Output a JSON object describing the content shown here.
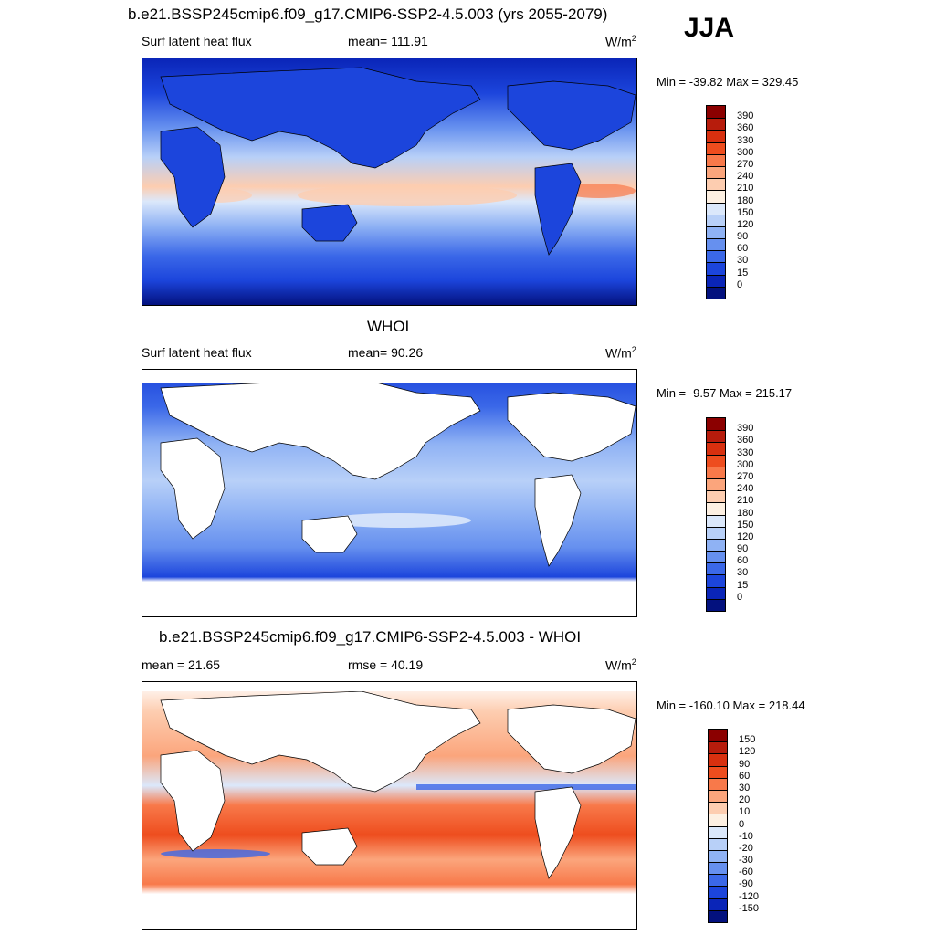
{
  "season": "JJA",
  "panels": [
    {
      "title": "b.e21.BSSP245cmip6.f09_g17.CMIP6-SSP2-4.5.003 (yrs 2055-2079)",
      "left_label": "Surf latent heat flux",
      "center_label": "mean= 111.91",
      "units": "W/m",
      "units_sup": "2",
      "minmax": "Min = -39.82 Max = 329.45",
      "land_filled": true,
      "colorbar": {
        "labels": [
          "390",
          "360",
          "330",
          "300",
          "270",
          "240",
          "210",
          "180",
          "150",
          "120",
          "90",
          "60",
          "30",
          "15",
          "0"
        ],
        "colors": [
          "#8b0000",
          "#b71c0c",
          "#d8300f",
          "#ee4d1e",
          "#f8794a",
          "#fba57c",
          "#fdcdb0",
          "#fdf0e2",
          "#dbe8fb",
          "#b8d0f8",
          "#8fb2f4",
          "#6690ef",
          "#3b68e8",
          "#1c45dc",
          "#0a25b8",
          "#03117e"
        ]
      }
    },
    {
      "title": "WHOI",
      "left_label": "Surf latent heat flux",
      "center_label": "mean=  90.26",
      "units": "W/m",
      "units_sup": "2",
      "minmax": "Min =  -9.57 Max = 215.17",
      "land_filled": false,
      "colorbar": {
        "labels": [
          "390",
          "360",
          "330",
          "300",
          "270",
          "240",
          "210",
          "180",
          "150",
          "120",
          "90",
          "60",
          "30",
          "15",
          "0"
        ],
        "colors": [
          "#8b0000",
          "#b71c0c",
          "#d8300f",
          "#ee4d1e",
          "#f8794a",
          "#fba57c",
          "#fdcdb0",
          "#fdf0e2",
          "#dbe8fb",
          "#b8d0f8",
          "#8fb2f4",
          "#6690ef",
          "#3b68e8",
          "#1c45dc",
          "#0a25b8",
          "#03117e"
        ]
      }
    },
    {
      "title": "b.e21.BSSP245cmip6.f09_g17.CMIP6-SSP2-4.5.003 - WHOI",
      "left_label": "mean =  21.65",
      "center_label": "rmse =  40.19",
      "units": "W/m",
      "units_sup": "2",
      "minmax": "Min = -160.10 Max = 218.44",
      "land_filled": false,
      "diff": true,
      "colorbar": {
        "labels": [
          "150",
          "120",
          "90",
          "60",
          "30",
          "20",
          "10",
          "0",
          "-10",
          "-20",
          "-30",
          "-60",
          "-90",
          "-120",
          "-150"
        ],
        "colors": [
          "#8b0000",
          "#b71c0c",
          "#d8300f",
          "#ee4d1e",
          "#f8794a",
          "#fba57c",
          "#fdcdb0",
          "#fdf0e2",
          "#dbe8fb",
          "#b8d0f8",
          "#8fb2f4",
          "#6690ef",
          "#3b68e8",
          "#1c45dc",
          "#0a25b8",
          "#03117e"
        ]
      }
    }
  ]
}
